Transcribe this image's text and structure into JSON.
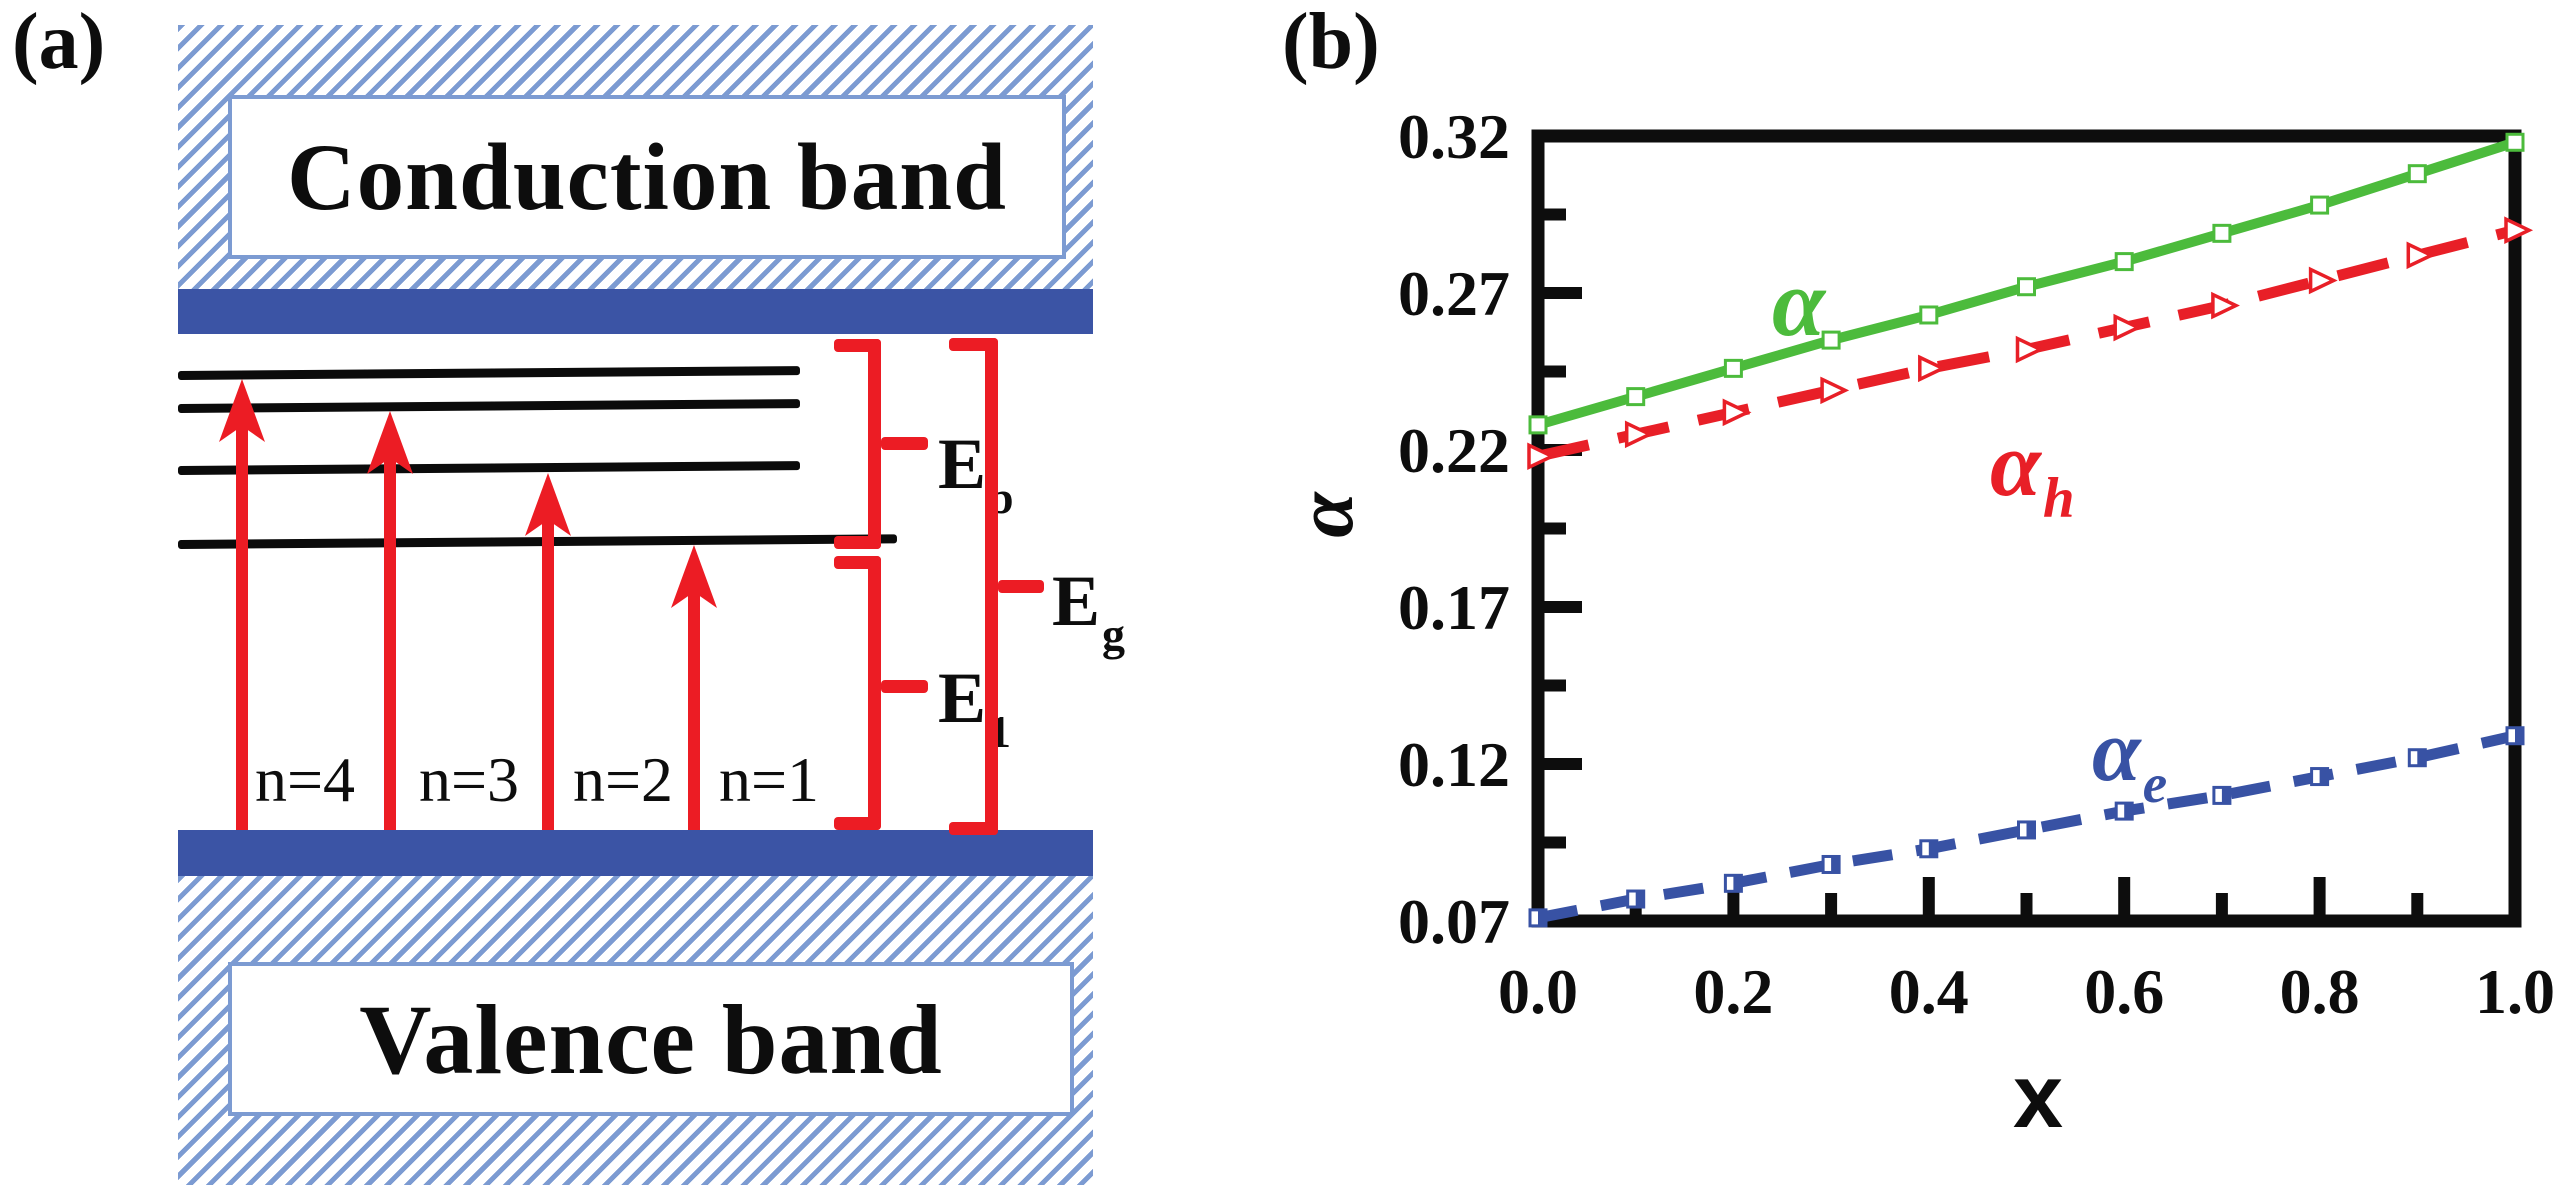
{
  "figure": {
    "panel_a": {
      "label": "(a)",
      "conduction_band_label": "Conduction band",
      "valence_band_label": "Valence band",
      "level_labels": [
        "n=4",
        "n=3",
        "n=2",
        "n=1"
      ],
      "energy_labels": {
        "Eb": {
          "base": "E",
          "sub": "b"
        },
        "E1": {
          "base": "E",
          "sub": "1"
        },
        "Eg": {
          "base": "E",
          "sub": "g"
        }
      },
      "colors": {
        "band_blue": "#3B54A5",
        "hatch_blue": "#7C9BD2",
        "arrow_red": "#EC1C24",
        "level_black": "#0b0b0b"
      }
    },
    "panel_b": {
      "label": "(b)"
    }
  },
  "chart_data": {
    "type": "line",
    "title": "",
    "xlabel": "x",
    "ylabel": "α",
    "xlim": [
      0.0,
      1.0
    ],
    "ylim": [
      0.07,
      0.32
    ],
    "grid": false,
    "legend_position": "inline-labels",
    "x": [
      0.0,
      0.1,
      0.2,
      0.3,
      0.4,
      0.5,
      0.6,
      0.7,
      0.8,
      0.9,
      1.0
    ],
    "x_major_ticks": [
      0.0,
      0.2,
      0.4,
      0.6,
      0.8,
      1.0
    ],
    "x_tick_labels": [
      "0.0",
      "0.2",
      "0.4",
      "0.6",
      "0.8",
      "1.0"
    ],
    "x_minor_ticks": [
      0.1,
      0.3,
      0.5,
      0.7,
      0.9
    ],
    "y_major_ticks": [
      0.07,
      0.12,
      0.17,
      0.22,
      0.27,
      0.32
    ],
    "y_tick_labels": [
      "0.07",
      "0.12",
      "0.17",
      "0.22",
      "0.27",
      "0.32"
    ],
    "y_minor_ticks": [
      0.095,
      0.145,
      0.195,
      0.245,
      0.295
    ],
    "axis_color": "#0d0d0d",
    "series": [
      {
        "name": "α",
        "label": "α",
        "label_sub": "",
        "color": "#4CBB3C",
        "style": "solid",
        "dash": null,
        "marker": "open-square",
        "values": [
          0.228,
          0.237,
          0.246,
          0.255,
          0.263,
          0.272,
          0.28,
          0.289,
          0.298,
          0.308,
          0.318
        ]
      },
      {
        "name": "α_h",
        "label": "α",
        "label_sub": "h",
        "color": "#E81F27",
        "style": "dashed",
        "dash": [
          52,
          30
        ],
        "marker": "open-right-triangle",
        "values": [
          0.218,
          0.225,
          0.232,
          0.239,
          0.246,
          0.252,
          0.259,
          0.266,
          0.274,
          0.282,
          0.29
        ]
      },
      {
        "name": "α_e",
        "label": "α",
        "label_sub": "e",
        "color": "#3852A4",
        "style": "dashed",
        "dash": [
          40,
          24
        ],
        "marker": "half-filled-square",
        "values": [
          0.071,
          0.077,
          0.082,
          0.088,
          0.093,
          0.099,
          0.105,
          0.11,
          0.116,
          0.122,
          0.129
        ]
      }
    ]
  }
}
